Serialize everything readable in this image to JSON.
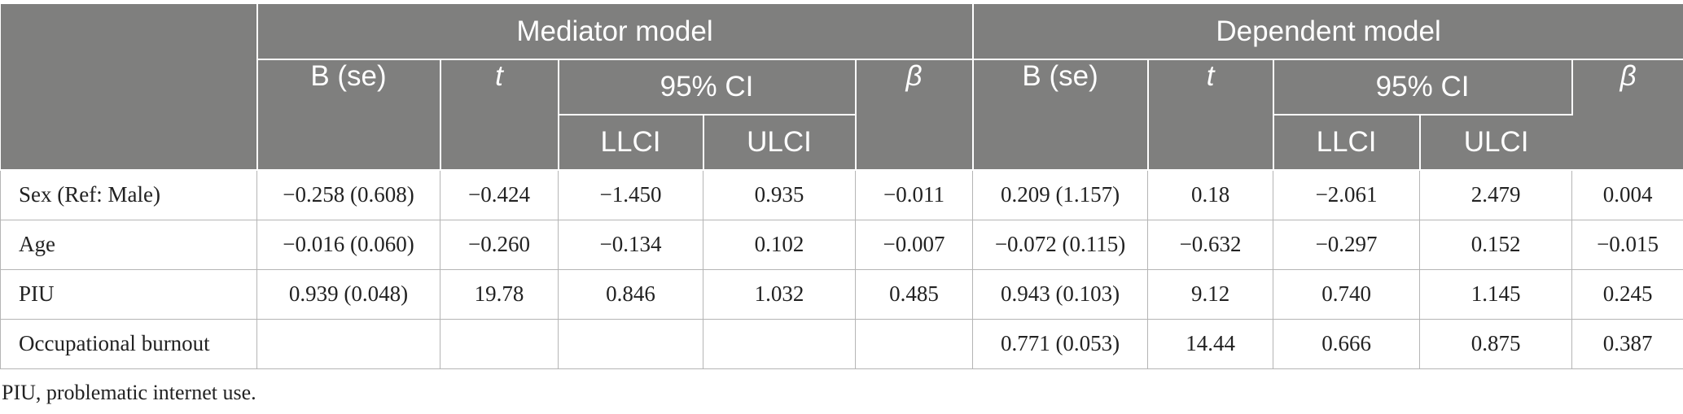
{
  "header": {
    "group_mediator": "Mediator model",
    "group_dependent": "Dependent model",
    "col_b_se": "B (se)",
    "col_t": "t",
    "col_ci": "95% CI",
    "col_beta": "β",
    "col_llci": "LLCI",
    "col_ulci": "ULCI"
  },
  "rows": [
    {
      "label": "Sex (Ref: Male)",
      "m_b": "−0.258 (0.608)",
      "m_t": "−0.424",
      "m_ll": "−1.450",
      "m_ul": "0.935",
      "m_beta": "−0.011",
      "d_b": "0.209 (1.157)",
      "d_t": "0.18",
      "d_ll": "−2.061",
      "d_ul": "2.479",
      "d_beta": "0.004"
    },
    {
      "label": "Age",
      "m_b": "−0.016 (0.060)",
      "m_t": "−0.260",
      "m_ll": "−0.134",
      "m_ul": "0.102",
      "m_beta": "−0.007",
      "d_b": "−0.072 (0.115)",
      "d_t": "−0.632",
      "d_ll": "−0.297",
      "d_ul": "0.152",
      "d_beta": "−0.015"
    },
    {
      "label": "PIU",
      "m_b": "0.939 (0.048)",
      "m_t": "19.78",
      "m_ll": "0.846",
      "m_ul": "1.032",
      "m_beta": "0.485",
      "d_b": "0.943 (0.103)",
      "d_t": "9.12",
      "d_ll": "0.740",
      "d_ul": "1.145",
      "d_beta": "0.245"
    },
    {
      "label": "Occupational burnout",
      "m_b": "",
      "m_t": "",
      "m_ll": "",
      "m_ul": "",
      "m_beta": "",
      "d_b": "0.771 (0.053)",
      "d_t": "14.44",
      "d_ll": "0.666",
      "d_ul": "0.875",
      "d_beta": "0.387"
    }
  ],
  "footnote": "PIU, problematic internet use."
}
